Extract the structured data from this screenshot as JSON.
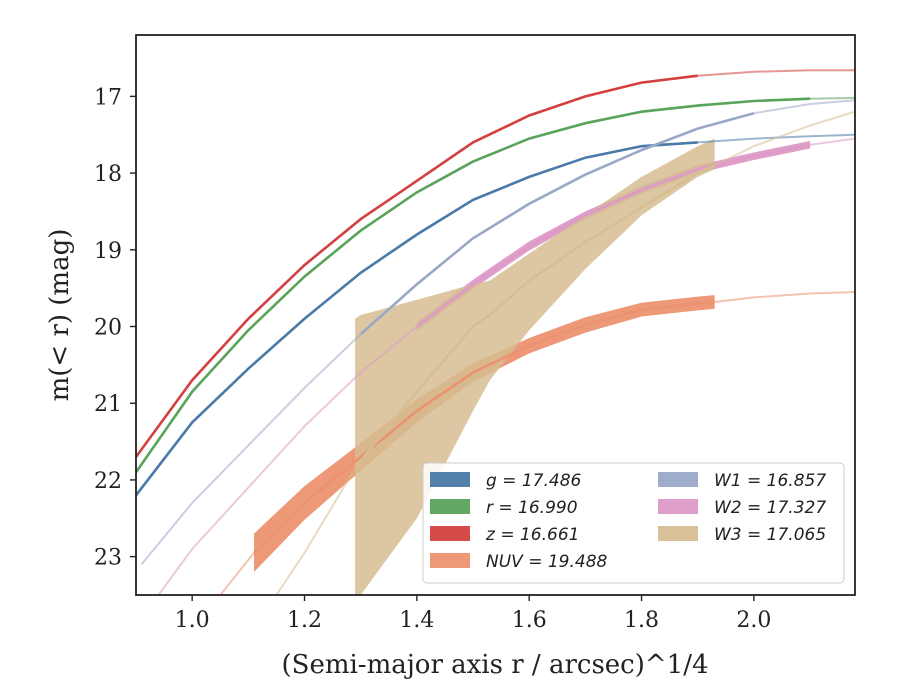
{
  "chart_data": {
    "type": "line",
    "xlabel": "(Semi-major axis r / arcsec)^1/4",
    "ylabel": "m(< r) (mag)",
    "xlim": [
      0.9,
      2.18
    ],
    "ylim": [
      23.5,
      16.2
    ],
    "y_inverted": true,
    "grid": false,
    "legend_position": "lower-right",
    "x_ticks": [
      "1.0",
      "1.2",
      "1.4",
      "1.6",
      "1.8",
      "2.0"
    ],
    "y_ticks": [
      "17",
      "18",
      "19",
      "20",
      "21",
      "22",
      "23"
    ],
    "series": [
      {
        "name": "g = 17.486",
        "color": "#4a7aa8",
        "x": [
          0.9,
          1.0,
          1.1,
          1.2,
          1.3,
          1.4,
          1.5,
          1.6,
          1.7,
          1.8,
          1.9,
          2.0,
          2.1,
          2.18
        ],
        "y": [
          22.2,
          21.25,
          20.55,
          19.9,
          19.3,
          18.8,
          18.35,
          18.05,
          17.8,
          17.65,
          17.6,
          17.55,
          17.52,
          17.5
        ],
        "measured_range": [
          0.9,
          1.93
        ],
        "band_halfwidth": [
          0,
          0,
          0,
          0,
          0,
          0,
          0,
          0,
          0,
          0,
          0,
          0,
          0,
          0
        ]
      },
      {
        "name": "r = 16.990",
        "color": "#5aa35a",
        "x": [
          0.9,
          1.0,
          1.1,
          1.2,
          1.3,
          1.4,
          1.5,
          1.6,
          1.7,
          1.8,
          1.9,
          2.0,
          2.1,
          2.18
        ],
        "y": [
          21.9,
          20.85,
          20.05,
          19.35,
          18.75,
          18.25,
          17.85,
          17.55,
          17.35,
          17.2,
          17.12,
          17.06,
          17.03,
          17.02
        ],
        "measured_range": [
          0.9,
          2.1
        ],
        "band_halfwidth": [
          0,
          0,
          0,
          0,
          0,
          0,
          0,
          0,
          0,
          0,
          0,
          0,
          0,
          0
        ]
      },
      {
        "name": "z = 16.661",
        "color": "#d44040",
        "x": [
          0.9,
          1.0,
          1.1,
          1.2,
          1.3,
          1.4,
          1.5,
          1.6,
          1.7,
          1.8,
          1.9,
          2.0,
          2.1,
          2.18
        ],
        "y": [
          21.7,
          20.7,
          19.9,
          19.2,
          18.6,
          18.1,
          17.6,
          17.25,
          17.0,
          16.82,
          16.73,
          16.68,
          16.66,
          16.66
        ],
        "measured_range": [
          0.9,
          1.94
        ],
        "band_halfwidth": [
          0,
          0,
          0,
          0,
          0,
          0,
          0,
          0,
          0,
          0,
          0,
          0,
          0,
          0
        ]
      },
      {
        "name": "NUV = 19.488",
        "color": "#ec9270",
        "x": [
          1.05,
          1.11,
          1.2,
          1.3,
          1.4,
          1.5,
          1.6,
          1.7,
          1.8,
          1.9,
          1.93,
          2.0,
          2.1,
          2.18
        ],
        "y": [
          23.5,
          22.95,
          22.3,
          21.7,
          21.1,
          20.6,
          20.25,
          19.98,
          19.78,
          19.7,
          19.68,
          19.62,
          19.57,
          19.55
        ],
        "measured_range": [
          1.11,
          1.93
        ],
        "band_halfwidth": [
          0,
          0.25,
          0.22,
          0.18,
          0.15,
          0.12,
          0.1,
          0.1,
          0.09,
          0.09,
          0.09,
          0,
          0,
          0
        ]
      },
      {
        "name": "W1 = 16.857",
        "color": "#9aa8c8",
        "x": [
          0.91,
          1.0,
          1.1,
          1.2,
          1.3,
          1.4,
          1.5,
          1.6,
          1.7,
          1.8,
          1.9,
          2.0,
          2.1,
          2.18
        ],
        "y": [
          23.1,
          22.3,
          21.55,
          20.8,
          20.1,
          19.45,
          18.85,
          18.4,
          18.02,
          17.7,
          17.42,
          17.22,
          17.1,
          17.05
        ],
        "measured_range": [
          1.28,
          2.02
        ],
        "band_halfwidth": [
          0,
          0,
          0,
          0,
          0,
          0,
          0,
          0,
          0,
          0,
          0,
          0,
          0,
          0
        ]
      },
      {
        "name": "W2 = 17.327",
        "color": "#dd9ac7",
        "x": [
          0.94,
          1.0,
          1.1,
          1.2,
          1.3,
          1.4,
          1.5,
          1.6,
          1.7,
          1.8,
          1.9,
          2.0,
          2.1,
          2.18
        ],
        "y": [
          23.5,
          22.9,
          22.1,
          21.3,
          20.6,
          20.0,
          19.45,
          18.95,
          18.55,
          18.22,
          17.95,
          17.78,
          17.63,
          17.55
        ],
        "measured_range": [
          1.36,
          2.1
        ],
        "band_halfwidth": [
          0,
          0,
          0,
          0,
          0,
          0.06,
          0.06,
          0.06,
          0.05,
          0.05,
          0.05,
          0.05,
          0.05,
          0
        ]
      },
      {
        "name": "W3 = 17.065",
        "color": "#d6bd92",
        "x": [
          1.15,
          1.2,
          1.29,
          1.3,
          1.4,
          1.5,
          1.53,
          1.6,
          1.7,
          1.8,
          1.9,
          1.93,
          2.0,
          2.1,
          2.18
        ],
        "y": [
          23.5,
          22.95,
          21.85,
          21.75,
          20.85,
          20.0,
          19.85,
          19.4,
          18.9,
          18.45,
          18.0,
          17.9,
          17.65,
          17.38,
          17.2
        ],
        "measured_range": [
          1.29,
          1.93
        ],
        "band_upper": [
          null,
          null,
          19.9,
          19.85,
          19.65,
          19.45,
          19.4,
          19.05,
          18.55,
          18.05,
          17.65,
          17.55,
          null,
          null,
          null
        ],
        "band_lower": [
          null,
          null,
          23.5,
          23.5,
          22.5,
          21.1,
          20.7,
          20.05,
          19.25,
          18.55,
          18.05,
          17.95,
          null,
          null,
          null
        ]
      }
    ]
  }
}
